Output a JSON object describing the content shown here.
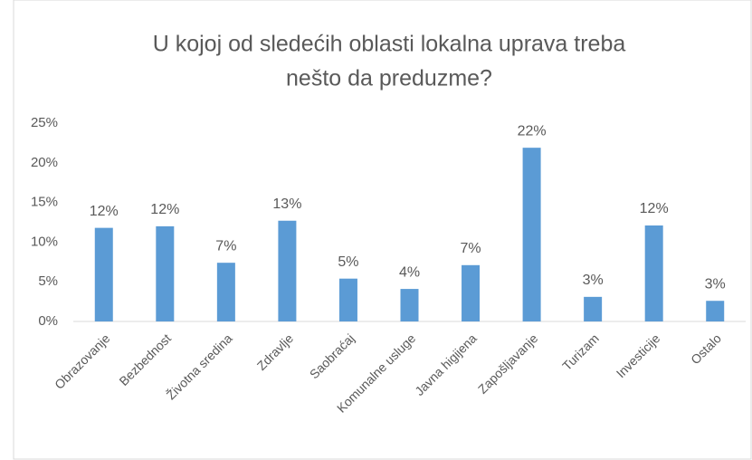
{
  "chart_data": {
    "type": "bar",
    "title": [
      "U kojoj od sledećih oblasti lokalna uprava treba",
      "nešto da preduzme?"
    ],
    "categories": [
      "Obrazovanje",
      "Bezbednost",
      "Životna sredina",
      "Zdravlje",
      "Saobraćaj",
      "Komunalne usluge",
      "Javna higijena",
      "Zapošljavanje",
      "Turizam",
      "Investicije",
      "Ostalo"
    ],
    "values": [
      11.8,
      12.0,
      7.4,
      12.7,
      5.4,
      4.1,
      7.1,
      21.9,
      3.1,
      12.1,
      2.6
    ],
    "value_labels": [
      "12%",
      "12%",
      "7%",
      "13%",
      "5%",
      "4%",
      "7%",
      "22%",
      "3%",
      "12%",
      "3%"
    ],
    "color": "#5b9bd5",
    "ylim": [
      0,
      25
    ],
    "yticks": [
      {
        "value": 0,
        "label": "0%"
      },
      {
        "value": 5,
        "label": "5%"
      },
      {
        "value": 10,
        "label": "10%"
      },
      {
        "value": 15,
        "label": "15%"
      },
      {
        "value": 20,
        "label": "20%"
      },
      {
        "value": 25,
        "label": "25%"
      }
    ],
    "grid": false
  }
}
